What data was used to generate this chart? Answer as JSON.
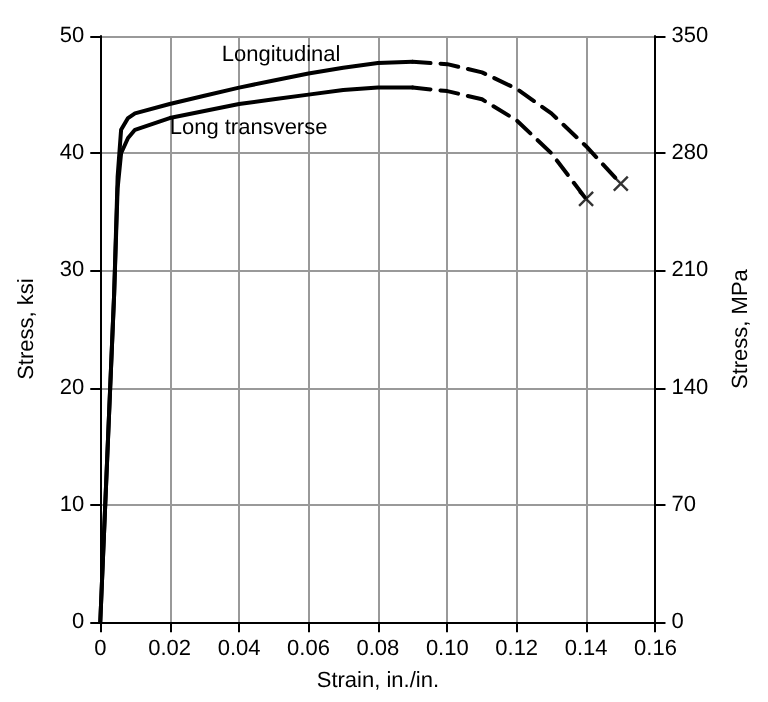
{
  "chart_data": {
    "type": "line",
    "xlabel": "Strain, in./in.",
    "ylabel": "Stress, ksi",
    "y2label": "Stress, MPa",
    "xlim": [
      0,
      0.16
    ],
    "xticks": [
      0,
      0.02,
      0.04,
      0.06,
      0.08,
      {
        "value": 0.1,
        "label": "0.10"
      },
      0.12,
      0.14,
      0.16
    ],
    "ylim": [
      0,
      50
    ],
    "yticks": [
      0,
      10,
      20,
      30,
      40,
      50
    ],
    "y2lim": [
      0,
      350
    ],
    "y2ticks": [
      0,
      70,
      140,
      210,
      280,
      350
    ],
    "grid": true,
    "legend": false,
    "marker": "none",
    "series": [
      {
        "name": "Longitudinal",
        "color": "#000000",
        "line_style": "solid",
        "x": [
          0,
          0.002,
          0.004,
          0.005,
          0.006,
          0.008,
          0.01,
          0.02,
          0.03,
          0.04,
          0.05,
          0.06,
          0.07,
          0.08,
          0.09
        ],
        "values": [
          0,
          14,
          28,
          38,
          42,
          43,
          43.4,
          44.2,
          44.9,
          45.6,
          46.2,
          46.8,
          47.3,
          47.7,
          47.8
        ]
      },
      {
        "name": "Long transverse",
        "color": "#000000",
        "line_style": "solid",
        "x": [
          0,
          0.002,
          0.004,
          0.005,
          0.006,
          0.008,
          0.01,
          0.02,
          0.03,
          0.04,
          0.05,
          0.06,
          0.07,
          0.08,
          0.09
        ],
        "values": [
          0,
          14,
          28,
          37,
          40,
          41.3,
          42,
          43,
          43.6,
          44.2,
          44.6,
          45,
          45.4,
          45.6,
          45.6
        ]
      },
      {
        "color": "#000000",
        "line_style": "dashed",
        "x": [
          0.09,
          0.1,
          0.11,
          0.12,
          0.13,
          0.14,
          0.15
        ],
        "values": [
          47.8,
          47.6,
          46.9,
          45.5,
          43.4,
          40.6,
          37.4
        ]
      },
      {
        "color": "#000000",
        "line_style": "dashed",
        "x": [
          0.09,
          0.1,
          0.11,
          0.12,
          0.13,
          0.14
        ],
        "values": [
          45.6,
          45.3,
          44.6,
          42.8,
          40,
          36.1
        ]
      },
      {
        "type": "scatter",
        "marker": "cross",
        "color": "#000000",
        "x": [
          0.15,
          0.14
        ],
        "values": [
          37.4,
          36.1
        ]
      }
    ]
  }
}
